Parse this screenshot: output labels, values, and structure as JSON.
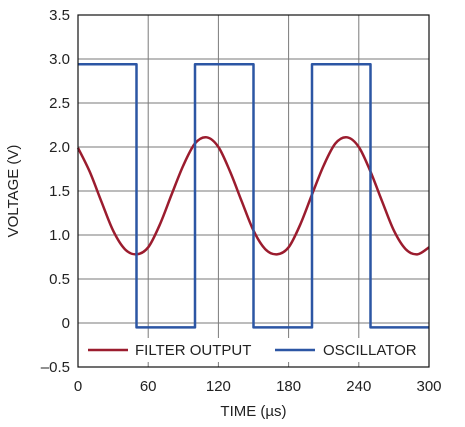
{
  "chart_data": {
    "type": "line",
    "xlabel": "TIME (µs)",
    "ylabel": "VOLTAGE (V)",
    "xlim": [
      0,
      300
    ],
    "ylim": [
      -0.5,
      3.5
    ],
    "xticks": [
      0,
      60,
      120,
      180,
      240,
      300
    ],
    "xtick_labels": [
      "0",
      "60",
      "120",
      "180",
      "240",
      "300"
    ],
    "yticks": [
      3.5,
      3.0,
      2.5,
      2.0,
      1.5,
      1.0,
      0.5,
      0,
      -0.5
    ],
    "ytick_labels": [
      "3.5",
      "3.0",
      "2.5",
      "2.0",
      "1.5",
      "1.0",
      "0.5",
      "0",
      "–0.5"
    ],
    "grid": true,
    "legend_position": "bottom",
    "series": [
      {
        "name": "FILTER OUTPUT",
        "color": "#9b1c2e",
        "x": [
          0,
          10,
          20,
          30,
          40,
          50,
          60,
          70,
          80,
          90,
          100,
          110,
          120,
          130,
          140,
          150,
          160,
          170,
          180,
          190,
          200,
          210,
          220,
          230,
          240,
          250,
          260,
          270,
          280,
          290,
          300
        ],
        "y": [
          1.99,
          1.72,
          1.38,
          1.05,
          0.84,
          0.78,
          0.86,
          1.12,
          1.46,
          1.79,
          2.04,
          2.11,
          2.0,
          1.72,
          1.38,
          1.05,
          0.84,
          0.78,
          0.86,
          1.12,
          1.46,
          1.79,
          2.04,
          2.11,
          2.0,
          1.72,
          1.38,
          1.05,
          0.84,
          0.78,
          0.86
        ]
      },
      {
        "name": "OSCILLATOR",
        "color": "#2c56a4",
        "x": [
          0,
          50,
          50,
          100,
          100,
          150,
          150,
          200,
          200,
          250,
          250,
          300
        ],
        "y": [
          2.94,
          2.94,
          -0.05,
          -0.05,
          2.94,
          2.94,
          -0.05,
          -0.05,
          2.94,
          2.94,
          -0.05,
          -0.05
        ]
      }
    ]
  }
}
